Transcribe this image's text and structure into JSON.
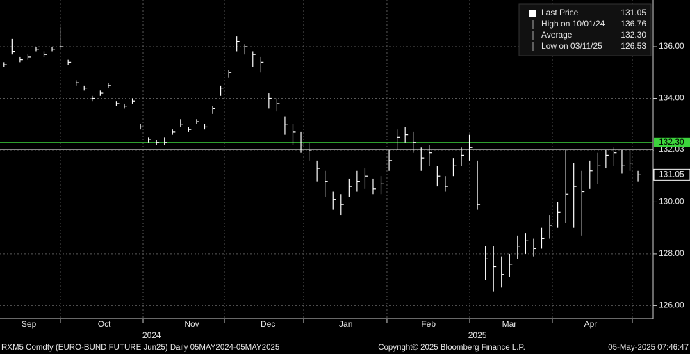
{
  "chart_data": {
    "type": "ohlc",
    "xlim": [
      -0.5,
      80.9
    ],
    "ylim": [
      125.5,
      137.8
    ],
    "yticks": [
      {
        "value": 126,
        "label": "126.00"
      },
      {
        "value": 128,
        "label": "128.00"
      },
      {
        "value": 130,
        "label": "130.00"
      },
      {
        "value": 132,
        "label": "132.00"
      },
      {
        "value": 134,
        "label": "134.00"
      },
      {
        "value": 136,
        "label": "136.00"
      }
    ],
    "xticks": [
      {
        "value": 3.1,
        "label": "Sep"
      },
      {
        "value": 12.5,
        "label": "Oct"
      },
      {
        "value": 23.4,
        "label": "Nov"
      },
      {
        "value": 32.9,
        "label": "Dec"
      },
      {
        "value": 42.6,
        "label": "Jan"
      },
      {
        "value": 52.9,
        "label": "Feb"
      },
      {
        "value": 62.97,
        "label": "Mar"
      },
      {
        "value": 73.1,
        "label": "Apr"
      }
    ],
    "month_boundaries": [
      7.03,
      17.34,
      27.47,
      37.34,
      47.73,
      58.04,
      68.34,
      78.3
    ],
    "year_labels": [
      {
        "value": 18.4,
        "label": "2024"
      },
      {
        "value": 59.0,
        "label": "2025"
      }
    ],
    "grid": true,
    "color": "#ffffff",
    "high": [
      135.4,
      136.3,
      135.6,
      135.7,
      136.0,
      135.8,
      136.0,
      136.76,
      135.5,
      134.7,
      134.5,
      134.1,
      134.3,
      134.6,
      133.9,
      133.8,
      134.0,
      133.0,
      132.5,
      132.4,
      132.5,
      132.8,
      133.2,
      132.9,
      133.2,
      133.0,
      133.7,
      134.5,
      135.1,
      136.4,
      136.1,
      135.8,
      135.6,
      134.2,
      134.0,
      133.3,
      133.0,
      132.7,
      132.3,
      131.6,
      131.2,
      130.4,
      130.3,
      130.9,
      131.2,
      131.3,
      130.9,
      131.0,
      132.0,
      132.8,
      132.9,
      132.7,
      132.1,
      132.2,
      131.4,
      131.0,
      131.7,
      132.1,
      132.6,
      131.6,
      128.3,
      128.3,
      127.9,
      128.0,
      128.7,
      128.8,
      128.6,
      129.0,
      129.5,
      130.0,
      132.0,
      131.5,
      131.2,
      131.6,
      131.9,
      132.0,
      132.1,
      132.0,
      132.0,
      131.2
    ],
    "low": [
      135.2,
      135.7,
      135.4,
      135.5,
      135.8,
      135.6,
      135.8,
      135.9,
      135.3,
      134.5,
      134.3,
      133.9,
      134.1,
      134.4,
      133.7,
      133.6,
      133.8,
      132.8,
      132.3,
      132.2,
      132.2,
      132.6,
      132.9,
      132.7,
      133.0,
      132.8,
      133.4,
      134.1,
      134.8,
      135.8,
      135.7,
      135.2,
      135.0,
      133.6,
      133.5,
      132.6,
      132.2,
      131.9,
      131.6,
      130.8,
      130.2,
      129.7,
      129.5,
      130.2,
      130.4,
      130.5,
      130.3,
      130.3,
      131.2,
      132.0,
      132.3,
      131.9,
      131.2,
      131.4,
      130.6,
      130.4,
      131.0,
      131.4,
      131.6,
      129.7,
      127.0,
      126.53,
      126.7,
      127.1,
      127.8,
      128.0,
      127.9,
      128.2,
      128.6,
      129.0,
      129.2,
      129.0,
      128.7,
      130.5,
      130.7,
      131.3,
      131.4,
      131.1,
      131.2,
      130.8
    ],
    "close": [
      135.3,
      135.8,
      135.5,
      135.6,
      135.9,
      135.7,
      135.9,
      136.0,
      135.4,
      134.6,
      134.4,
      134.0,
      134.2,
      134.5,
      133.8,
      133.7,
      133.9,
      132.9,
      132.4,
      132.3,
      132.3,
      132.7,
      133.0,
      132.8,
      133.1,
      132.9,
      133.6,
      134.4,
      135.0,
      136.2,
      136.0,
      135.7,
      135.4,
      134.0,
      133.8,
      133.0,
      132.7,
      132.2,
      132.0,
      131.3,
      130.8,
      130.1,
      129.9,
      130.6,
      130.8,
      131.0,
      130.5,
      130.7,
      131.6,
      132.5,
      132.6,
      132.3,
      131.7,
      131.9,
      131.0,
      130.6,
      131.4,
      131.8,
      132.1,
      129.9,
      127.8,
      127.5,
      127.2,
      127.6,
      128.3,
      128.5,
      128.2,
      128.6,
      129.1,
      129.6,
      130.3,
      130.6,
      130.4,
      131.2,
      131.4,
      131.8,
      131.9,
      131.4,
      131.5,
      131.05
    ],
    "ref_lines": [
      {
        "value": 132.3,
        "label": "132.30",
        "color": "#3cd33c"
      },
      {
        "value": 132.03,
        "label": "132.03",
        "color": "#d8d8d8"
      }
    ],
    "last_price": {
      "value": 131.05,
      "label": "131.05"
    },
    "legend": [
      {
        "name": "Last Price",
        "value": "131.05"
      },
      {
        "name": "High on 10/01/24",
        "value": "136.76"
      },
      {
        "name": "Average",
        "value": "132.30"
      },
      {
        "name": "Low on 03/11/25",
        "value": "126.53"
      }
    ],
    "footer": {
      "security": "RXM5 Comdty (EURO-BUND FUTURE  Jun25)  Daily 05MAY2024-05MAY2025",
      "copyright": "Copyright© 2025 Bloomberg Finance L.P.",
      "timestamp": "05-May-2025 07:46:47"
    }
  }
}
